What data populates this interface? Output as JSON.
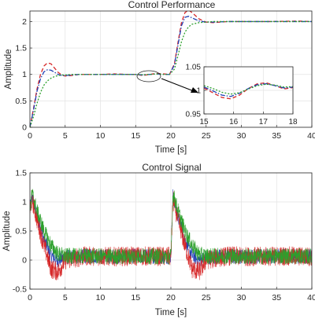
{
  "chart_data": [
    {
      "type": "line",
      "title": "Control Performance",
      "xlabel": "Time [s]",
      "ylabel": "Amplitude",
      "xlim": [
        0,
        40
      ],
      "ylim": [
        0,
        2.2
      ],
      "xticks": [
        "0",
        "5",
        "10",
        "15",
        "20",
        "25",
        "30",
        "35",
        "40"
      ],
      "yticks": [
        "0",
        "0.5",
        "1",
        "1.5",
        "2"
      ],
      "grid": true,
      "series": [
        {
          "color": "#d62728",
          "style": "dashed",
          "x": [
            0,
            0.5,
            1,
            1.5,
            2,
            2.5,
            3,
            3.5,
            4,
            4.5,
            5,
            6,
            7,
            8,
            10,
            12,
            14,
            15,
            16,
            17,
            18,
            19,
            19.8,
            20.5,
            21,
            21.5,
            22,
            22.5,
            23,
            24,
            25,
            26,
            28,
            30,
            34,
            38,
            40
          ],
          "y": [
            0,
            0.35,
            0.72,
            1.0,
            1.16,
            1.22,
            1.2,
            1.12,
            1.04,
            0.99,
            0.97,
            0.98,
            1.0,
            1.0,
            1.0,
            1.01,
            1.0,
            1.0,
            0.98,
            1.0,
            1.02,
            1.01,
            1.0,
            1.2,
            1.6,
            1.98,
            2.17,
            2.22,
            2.17,
            2.05,
            1.99,
            1.98,
            2.0,
            2.0,
            2.0,
            2.01,
            2.0
          ]
        },
        {
          "color": "#1f3fb4",
          "style": "dashdot",
          "x": [
            0,
            0.5,
            1,
            1.5,
            2,
            2.5,
            3,
            3.5,
            4,
            4.5,
            5,
            6,
            7,
            8,
            10,
            12,
            14,
            15,
            16,
            17,
            18,
            19,
            19.8,
            20.5,
            21,
            21.5,
            22,
            22.5,
            23,
            24,
            25,
            26,
            28,
            30,
            34,
            38,
            40
          ],
          "y": [
            0,
            0.32,
            0.68,
            0.92,
            1.05,
            1.09,
            1.08,
            1.04,
            1.0,
            0.98,
            0.98,
            0.99,
            1.0,
            1.0,
            1.0,
            1.0,
            1.0,
            1.0,
            0.99,
            1.0,
            1.01,
            1.0,
            1.0,
            1.18,
            1.55,
            1.92,
            2.08,
            2.1,
            2.07,
            2.01,
            1.99,
            1.99,
            2.0,
            2.0,
            2.0,
            2.0,
            2.0
          ]
        },
        {
          "color": "#2ca02c",
          "style": "dotted",
          "x": [
            0,
            0.5,
            1,
            1.5,
            2,
            2.5,
            3,
            3.5,
            4,
            4.5,
            5,
            6,
            7,
            8,
            10,
            12,
            14,
            15,
            16,
            17,
            18,
            19,
            19.8,
            20.5,
            21,
            21.5,
            22,
            22.5,
            23,
            24,
            25,
            26,
            28,
            30,
            34,
            38,
            40
          ],
          "y": [
            0,
            0.2,
            0.45,
            0.66,
            0.8,
            0.88,
            0.93,
            0.96,
            0.98,
            0.99,
            0.99,
            1.0,
            1.0,
            1.0,
            1.0,
            1.0,
            1.0,
            1.0,
            0.995,
            1.0,
            1.01,
            1.0,
            1.0,
            1.1,
            1.35,
            1.62,
            1.8,
            1.9,
            1.95,
            1.98,
            1.99,
            2.0,
            2.0,
            2.0,
            2.0,
            2.0,
            2.0
          ]
        }
      ],
      "inset": {
        "xlim": [
          15,
          18
        ],
        "ylim": [
          0.95,
          1.05
        ],
        "xticks": [
          "15",
          "16",
          "17",
          "18"
        ],
        "yticks": [
          "0.95",
          "1",
          "1.05"
        ],
        "series": [
          {
            "color": "#d62728",
            "style": "dashed",
            "x": [
              15,
              15.3,
              15.6,
              15.9,
              16.2,
              16.5,
              16.8,
              17.1,
              17.4,
              17.7,
              18
            ],
            "y": [
              1.005,
              0.995,
              0.985,
              0.982,
              0.99,
              1.004,
              1.014,
              1.016,
              1.01,
              1.003,
              1.006
            ]
          },
          {
            "color": "#1f3fb4",
            "style": "dashdot",
            "x": [
              15,
              15.3,
              15.6,
              15.9,
              16.2,
              16.5,
              16.8,
              17.1,
              17.4,
              17.7,
              18
            ],
            "y": [
              1.007,
              0.999,
              0.99,
              0.987,
              0.994,
              1.004,
              1.012,
              1.014,
              1.01,
              1.005,
              1.007
            ]
          },
          {
            "color": "#2ca02c",
            "style": "dotted",
            "x": [
              15,
              15.3,
              15.6,
              15.9,
              16.2,
              16.5,
              16.8,
              17.1,
              17.4,
              17.7,
              18
            ],
            "y": [
              1.01,
              1.004,
              0.996,
              0.992,
              0.995,
              1.003,
              1.01,
              1.013,
              1.011,
              1.007,
              1.008
            ]
          }
        ]
      }
    },
    {
      "type": "line",
      "title": "Control Signal",
      "xlabel": "Time [s]",
      "ylabel": "Amplitude",
      "xlim": [
        0,
        40
      ],
      "ylim": [
        -0.5,
        1.5
      ],
      "xticks": [
        "0",
        "5",
        "10",
        "15",
        "20",
        "25",
        "30",
        "35",
        "40"
      ],
      "yticks": [
        "-0.5",
        "0",
        "0.5",
        "1",
        "1.5"
      ],
      "grid": true,
      "series": [
        {
          "color": "#1f3fb4",
          "x": [
            0,
            0.3,
            1,
            2,
            3,
            4,
            5,
            8,
            12,
            16,
            20,
            20.3,
            21,
            22,
            23,
            24,
            25,
            28,
            32,
            36,
            40
          ],
          "y": [
            0.85,
            1.1,
            0.75,
            0.35,
            0.08,
            0.0,
            0.05,
            0.07,
            0.06,
            0.07,
            0.06,
            1.1,
            0.75,
            0.35,
            0.08,
            0.0,
            0.05,
            0.07,
            0.06,
            0.07,
            0.06
          ],
          "noise": 0.13
        },
        {
          "color": "#d62728",
          "x": [
            0,
            0.3,
            1,
            2,
            3,
            4,
            5,
            8,
            12,
            16,
            20,
            20.3,
            21,
            22,
            23,
            24,
            25,
            28,
            32,
            36,
            40
          ],
          "y": [
            0.85,
            1.05,
            0.7,
            0.25,
            -0.15,
            -0.2,
            0.0,
            0.07,
            0.06,
            0.07,
            0.06,
            1.05,
            0.7,
            0.25,
            -0.15,
            -0.2,
            0.0,
            0.07,
            0.06,
            0.07,
            0.06
          ],
          "noise": 0.17
        },
        {
          "color": "#2ca02c",
          "x": [
            0,
            0.3,
            1,
            2,
            3,
            4,
            5,
            8,
            12,
            16,
            20,
            20.3,
            21,
            22,
            23,
            24,
            25,
            28,
            32,
            36,
            40
          ],
          "y": [
            0.85,
            1.15,
            0.85,
            0.5,
            0.25,
            0.1,
            0.07,
            0.07,
            0.06,
            0.07,
            0.06,
            1.15,
            0.85,
            0.5,
            0.25,
            0.1,
            0.07,
            0.07,
            0.06,
            0.07,
            0.06
          ],
          "noise": 0.14
        }
      ]
    }
  ]
}
